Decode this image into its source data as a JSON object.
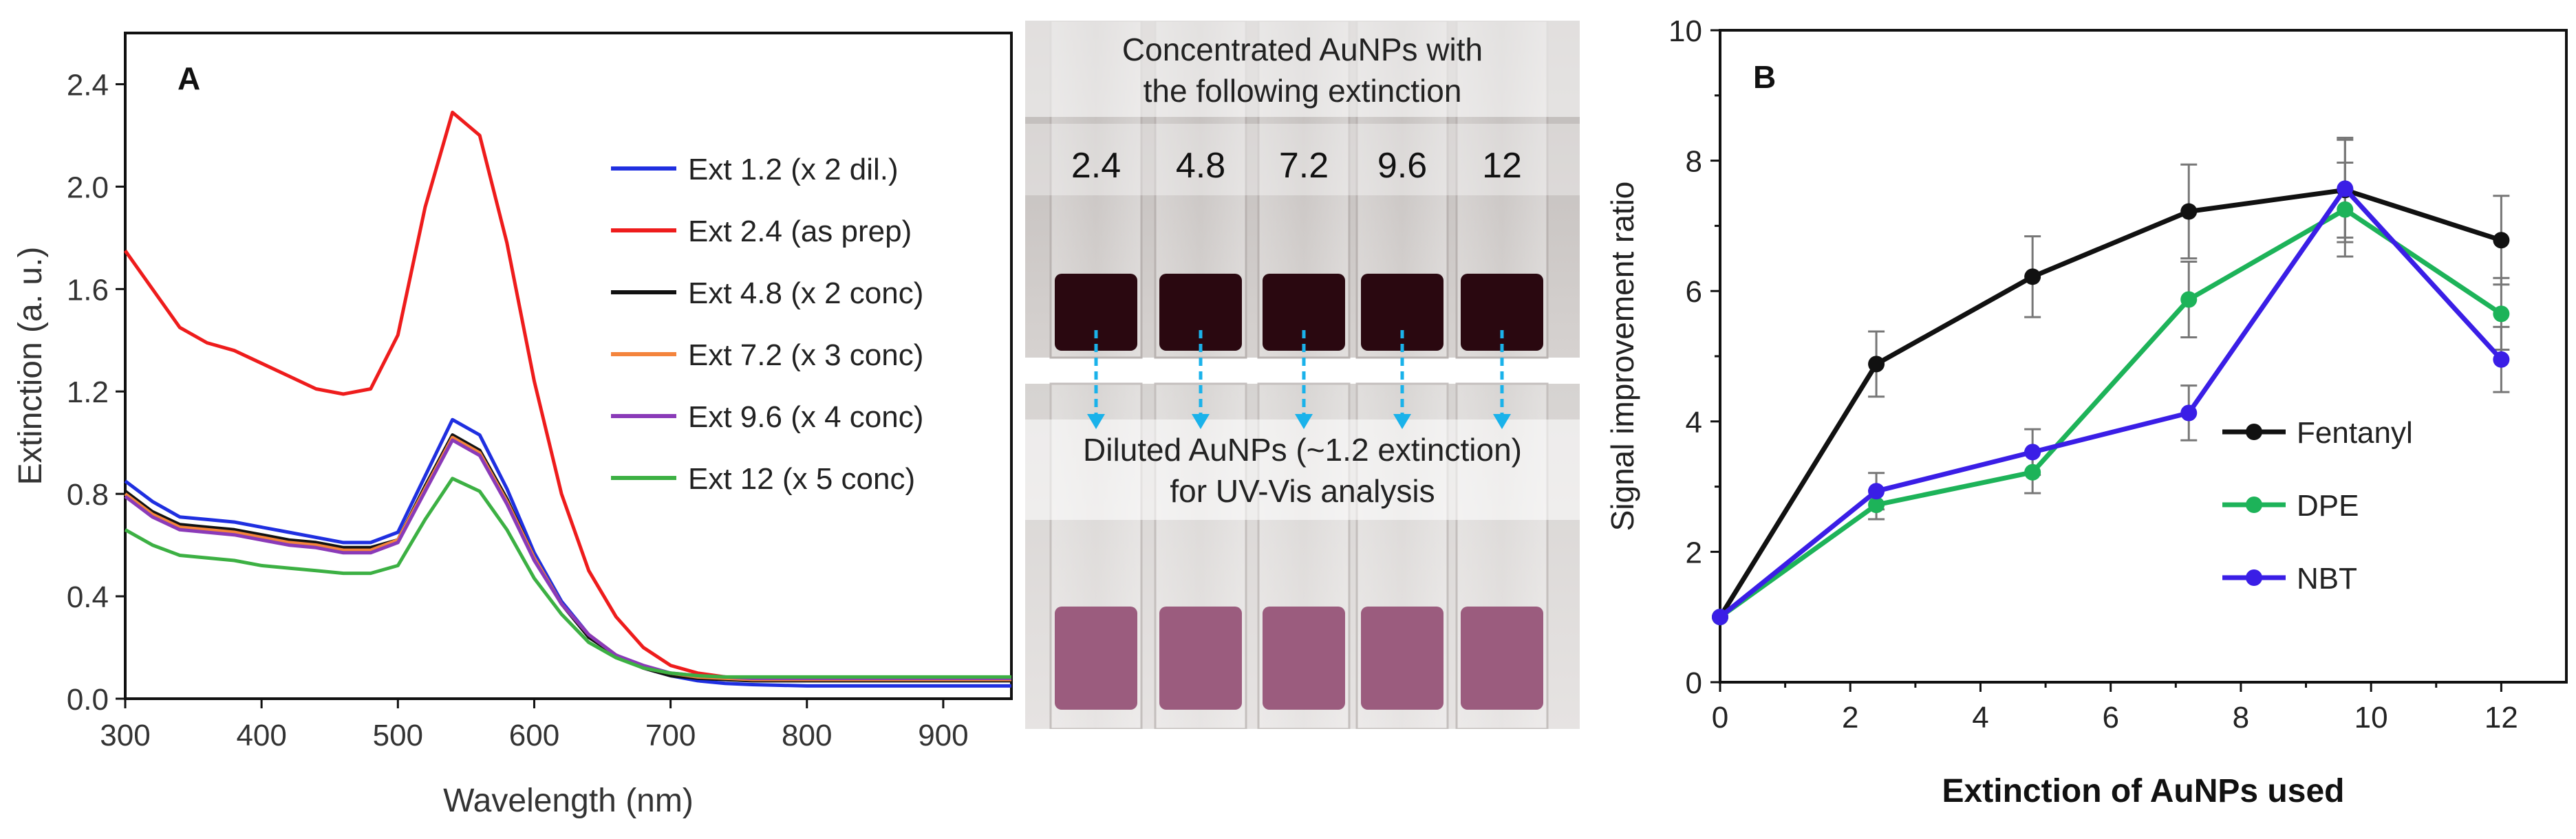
{
  "chart_data": [
    {
      "type": "line",
      "panel_label": "A",
      "xlabel": "Wavelength (nm)",
      "ylabel": "Extinction (a. u.)",
      "xlim": [
        300,
        950
      ],
      "ylim": [
        0.0,
        2.6
      ],
      "x_ticks": [
        300,
        400,
        500,
        600,
        700,
        800,
        900
      ],
      "y_ticks": [
        0.0,
        0.4,
        0.8,
        1.2,
        1.6,
        2.0,
        2.4
      ],
      "x_tick_labels": [
        "300",
        "400",
        "500",
        "600",
        "700",
        "800",
        "900"
      ],
      "y_tick_labels": [
        "0.0",
        "0.4",
        "0.8",
        "1.2",
        "1.6",
        "2.0",
        "2.4"
      ],
      "legend_position": "center-right",
      "x": [
        300,
        320,
        340,
        360,
        380,
        400,
        420,
        440,
        460,
        480,
        500,
        520,
        540,
        560,
        580,
        600,
        620,
        640,
        660,
        680,
        700,
        720,
        740,
        760,
        800,
        850,
        900,
        950
      ],
      "series": [
        {
          "name": "Ext 1.2 (x 2 dil.)",
          "color": "#1f2fe0",
          "values": [
            0.85,
            0.77,
            0.71,
            0.7,
            0.69,
            0.67,
            0.65,
            0.63,
            0.61,
            0.61,
            0.65,
            0.87,
            1.09,
            1.03,
            0.82,
            0.57,
            0.38,
            0.25,
            0.17,
            0.12,
            0.09,
            0.07,
            0.06,
            0.055,
            0.05,
            0.05,
            0.05,
            0.05
          ]
        },
        {
          "name": "Ext 2.4 (as prep)",
          "color": "#ee1c1c",
          "values": [
            1.75,
            1.6,
            1.45,
            1.39,
            1.36,
            1.31,
            1.26,
            1.21,
            1.19,
            1.21,
            1.42,
            1.92,
            2.29,
            2.2,
            1.78,
            1.24,
            0.8,
            0.5,
            0.32,
            0.2,
            0.13,
            0.1,
            0.085,
            0.08,
            0.08,
            0.08,
            0.08,
            0.08
          ]
        },
        {
          "name": "Ext 4.8 (x 2 conc)",
          "color": "#111111",
          "values": [
            0.81,
            0.73,
            0.68,
            0.67,
            0.66,
            0.64,
            0.62,
            0.61,
            0.59,
            0.59,
            0.62,
            0.83,
            1.03,
            0.97,
            0.78,
            0.55,
            0.37,
            0.24,
            0.17,
            0.12,
            0.09,
            0.08,
            0.075,
            0.07,
            0.07,
            0.07,
            0.07,
            0.07
          ]
        },
        {
          "name": "Ext 7.2 (x 3 conc)",
          "color": "#f4843c",
          "values": [
            0.8,
            0.72,
            0.67,
            0.66,
            0.65,
            0.63,
            0.61,
            0.6,
            0.58,
            0.58,
            0.62,
            0.82,
            1.02,
            0.96,
            0.77,
            0.55,
            0.37,
            0.25,
            0.17,
            0.12,
            0.1,
            0.085,
            0.08,
            0.075,
            0.075,
            0.075,
            0.075,
            0.075
          ]
        },
        {
          "name": "Ext 9.6 (x 4 conc)",
          "color": "#8a3ab8",
          "values": [
            0.79,
            0.71,
            0.66,
            0.65,
            0.64,
            0.62,
            0.6,
            0.59,
            0.57,
            0.57,
            0.61,
            0.81,
            1.01,
            0.95,
            0.76,
            0.54,
            0.37,
            0.25,
            0.17,
            0.13,
            0.1,
            0.09,
            0.085,
            0.08,
            0.08,
            0.08,
            0.08,
            0.08
          ]
        },
        {
          "name": "Ext 12 (x 5 conc)",
          "color": "#3cb043",
          "values": [
            0.66,
            0.6,
            0.56,
            0.55,
            0.54,
            0.52,
            0.51,
            0.5,
            0.49,
            0.49,
            0.52,
            0.7,
            0.86,
            0.81,
            0.66,
            0.47,
            0.33,
            0.22,
            0.16,
            0.12,
            0.1,
            0.09,
            0.085,
            0.085,
            0.085,
            0.085,
            0.085,
            0.085
          ]
        }
      ]
    },
    {
      "type": "line",
      "panel_label": "B",
      "xlabel": "Extinction of AuNPs used",
      "ylabel": "Signal improvement ratio",
      "xlim": [
        0,
        13
      ],
      "ylim": [
        0,
        10
      ],
      "x_ticks": [
        0,
        2,
        4,
        6,
        8,
        10,
        12
      ],
      "y_ticks": [
        0,
        2,
        4,
        6,
        8,
        10
      ],
      "x_tick_labels": [
        "0",
        "2",
        "4",
        "6",
        "8",
        "10",
        "12"
      ],
      "y_tick_labels": [
        "0",
        "2",
        "4",
        "6",
        "8",
        "10"
      ],
      "legend_position": "center-right",
      "x": [
        0,
        2.4,
        4.8,
        7.2,
        9.6,
        12
      ],
      "series": [
        {
          "name": "Fentanyl",
          "color": "#111111",
          "values": [
            1.0,
            4.88,
            6.22,
            7.22,
            7.55,
            6.78
          ],
          "errors": [
            0,
            0.5,
            0.62,
            0.72,
            0.8,
            0.68
          ]
        },
        {
          "name": "DPE",
          "color": "#1db359",
          "values": [
            1.0,
            2.72,
            3.22,
            5.87,
            7.25,
            5.65
          ],
          "errors": [
            0,
            0.22,
            0.32,
            0.58,
            0.72,
            0.55
          ]
        },
        {
          "name": "NBT",
          "color": "#3a1ee6",
          "values": [
            1.0,
            2.93,
            3.53,
            4.13,
            7.57,
            4.95
          ],
          "errors": [
            0,
            0.28,
            0.35,
            0.42,
            0.75,
            0.5
          ]
        }
      ]
    }
  ],
  "photo": {
    "top_caption_line1": "Concentrated AuNPs with",
    "top_caption_line2": "the following extinction",
    "vial_labels": [
      "2.4",
      "4.8",
      "7.2",
      "9.6",
      "12"
    ],
    "bottom_caption_line1": "Diluted AuNPs (~1.2 extinction)",
    "bottom_caption_line2": "for UV-Vis analysis",
    "colors": {
      "concentrated_liquid": "#2a0810",
      "diluted_liquid": "#9b5c7e",
      "arrow": "#1ab2ea",
      "background": "#cdc8c6"
    }
  }
}
